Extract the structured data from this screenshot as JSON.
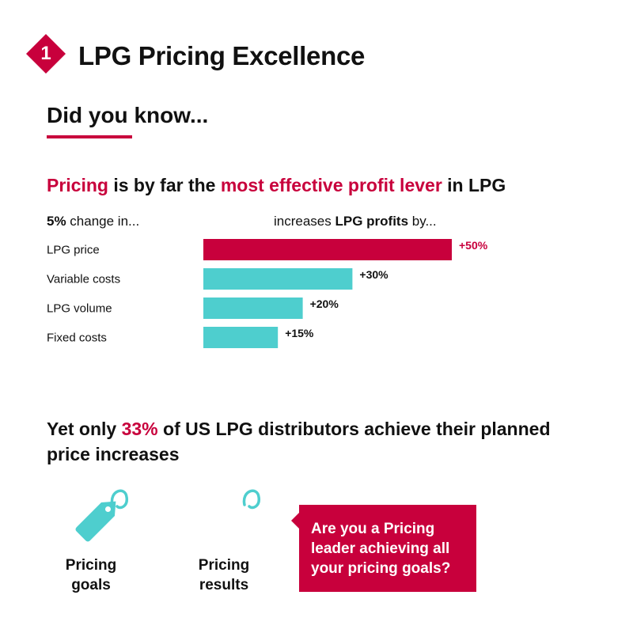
{
  "header": {
    "number": "1",
    "title": "LPG Pricing Excellence"
  },
  "intro": {
    "did_you_know": "Did you know..."
  },
  "headline": {
    "part1": "Pricing",
    "part2": " is by far the ",
    "part3": "most effective profit lever",
    "part4": " in LPG"
  },
  "columns": {
    "left_bold": "5%",
    "left_rest": " change in...",
    "right_pre": "increases ",
    "right_bold": "LPG profits",
    "right_post": " by..."
  },
  "chart_data": {
    "type": "bar",
    "orientation": "horizontal",
    "categories": [
      "LPG price",
      "Variable costs",
      "LPG volume",
      "Fixed costs"
    ],
    "values": [
      50,
      30,
      20,
      15
    ],
    "data_labels": [
      "+50%",
      "+30%",
      "+20%",
      "+15%"
    ],
    "unit": "%",
    "xlim": [
      0,
      50
    ],
    "grid": false,
    "colors": [
      "#c8003c",
      "#4ecece",
      "#4ecece",
      "#4ecece"
    ],
    "label_colors": [
      "#c8003c",
      "#111111",
      "#111111",
      "#111111"
    ]
  },
  "stat": {
    "pre": "Yet only ",
    "highlight": "33%",
    "post": " of US LPG distributors achieve their planned price increases"
  },
  "tags": {
    "goals_line1": "Pricing",
    "goals_line2": "goals",
    "results_line1": "Pricing",
    "results_line2": "results",
    "goals_icon": "price-tag-icon",
    "results_icon": "price-tag-partial-icon"
  },
  "callout": {
    "text": "Are you a Pricing leader achieving all your pricing goals?"
  },
  "colors": {
    "accent": "#c8003c",
    "teal": "#4ecece"
  }
}
